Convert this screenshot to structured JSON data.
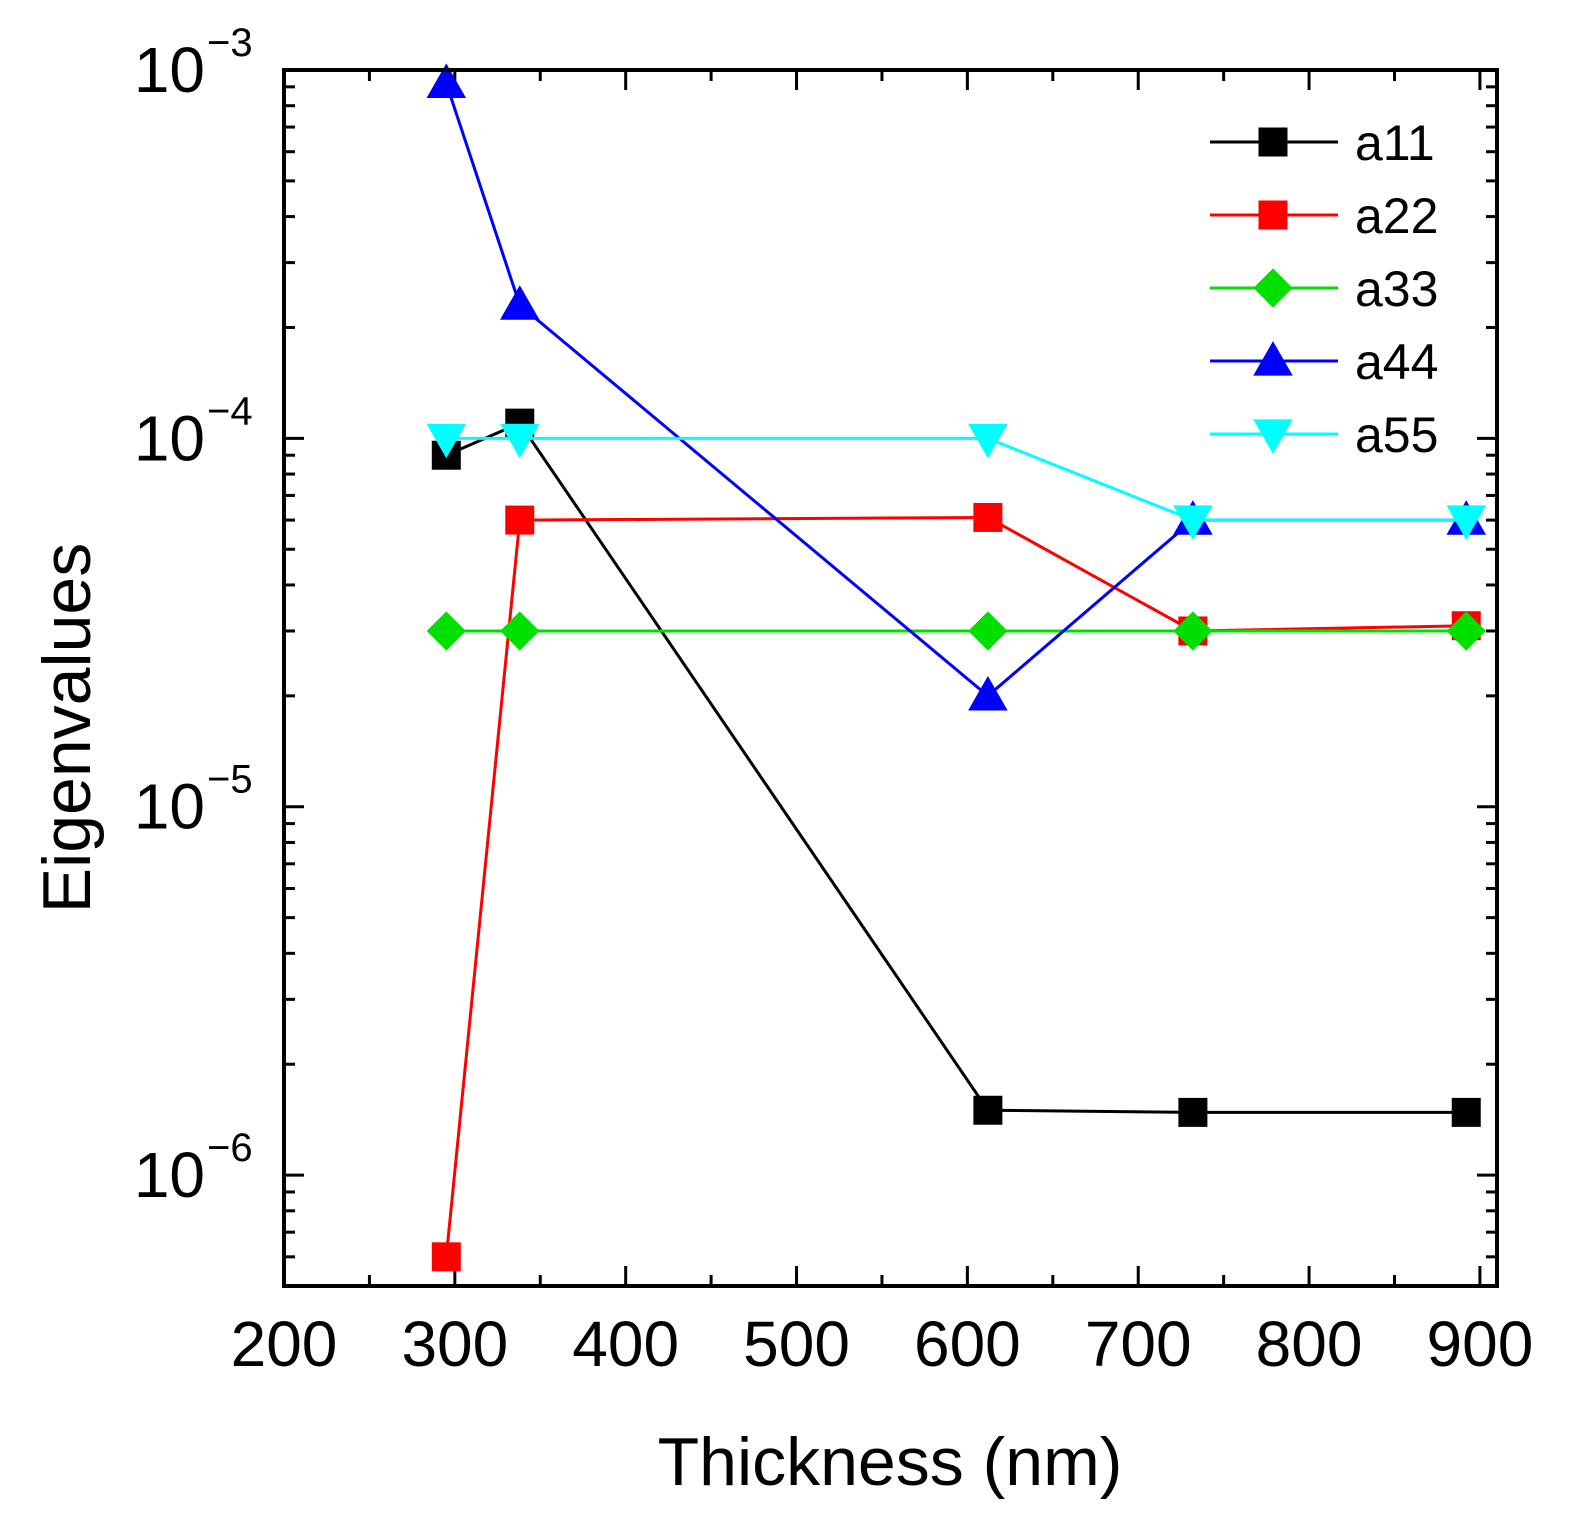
{
  "chart_data": {
    "type": "line",
    "xlabel": "Thickness (nm)",
    "ylabel": "Eigenvalues",
    "xlim": [
      200,
      910
    ],
    "ylim": [
      5e-07,
      0.001
    ],
    "yscale": "log",
    "x_ticks": [
      200,
      300,
      400,
      500,
      600,
      700,
      800,
      900
    ],
    "x_tick_labels": [
      "200",
      "300",
      "400",
      "500",
      "600",
      "700",
      "800",
      "900"
    ],
    "y_ticks": [
      1e-06,
      1e-05,
      0.0001,
      0.001
    ],
    "y_tick_labels": [
      {
        "base": "10",
        "exp": "−6"
      },
      {
        "base": "10",
        "exp": "−5"
      },
      {
        "base": "10",
        "exp": "−4"
      },
      {
        "base": "10",
        "exp": "−3"
      }
    ],
    "grid": false,
    "legend_position": "top-right",
    "x": [
      295,
      338,
      612,
      732,
      892
    ],
    "series": [
      {
        "name": "a11",
        "color": "#000000",
        "marker": "square",
        "values": [
          9e-05,
          0.00011,
          1.5e-06,
          1.48e-06,
          1.48e-06
        ]
      },
      {
        "name": "a22",
        "color": "#ff0000",
        "marker": "square",
        "values": [
          6e-07,
          6e-05,
          6.1e-05,
          3e-05,
          3.1e-05
        ]
      },
      {
        "name": "a33",
        "color": "#00e000",
        "marker": "diamond",
        "values": [
          3e-05,
          3e-05,
          3e-05,
          3e-05,
          3e-05
        ]
      },
      {
        "name": "a44",
        "color": "#0000ff",
        "marker": "triangle-up",
        "values": [
          0.00092,
          0.00023,
          2e-05,
          6e-05,
          6e-05
        ]
      },
      {
        "name": "a55",
        "color": "#00ffff",
        "marker": "triangle-down",
        "values": [
          0.0001,
          0.0001,
          0.0001,
          6e-05,
          6e-05
        ]
      }
    ]
  }
}
